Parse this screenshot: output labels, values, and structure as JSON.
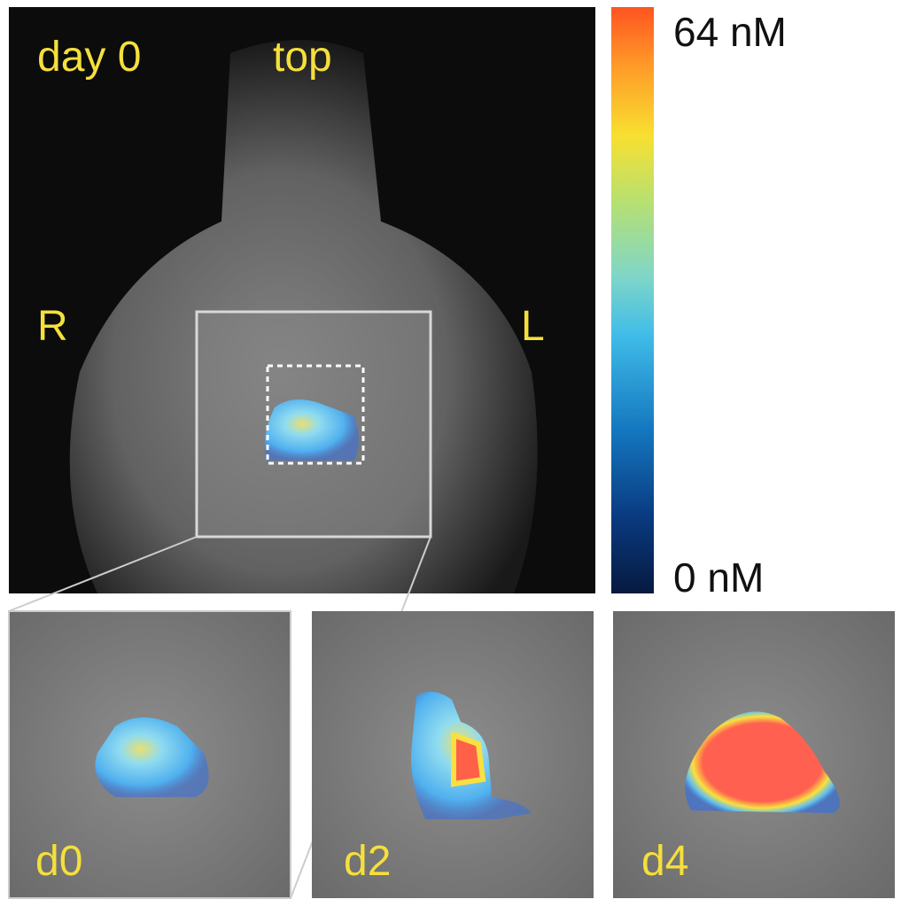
{
  "main_image": {
    "labels": {
      "time": "day 0",
      "orientation": "top",
      "right": "R",
      "left": "L"
    }
  },
  "colorbar": {
    "max_label": "64 nM",
    "min_label": "0 nM"
  },
  "panels": [
    {
      "label": "d0"
    },
    {
      "label": "d2"
    },
    {
      "label": "d4"
    }
  ]
}
